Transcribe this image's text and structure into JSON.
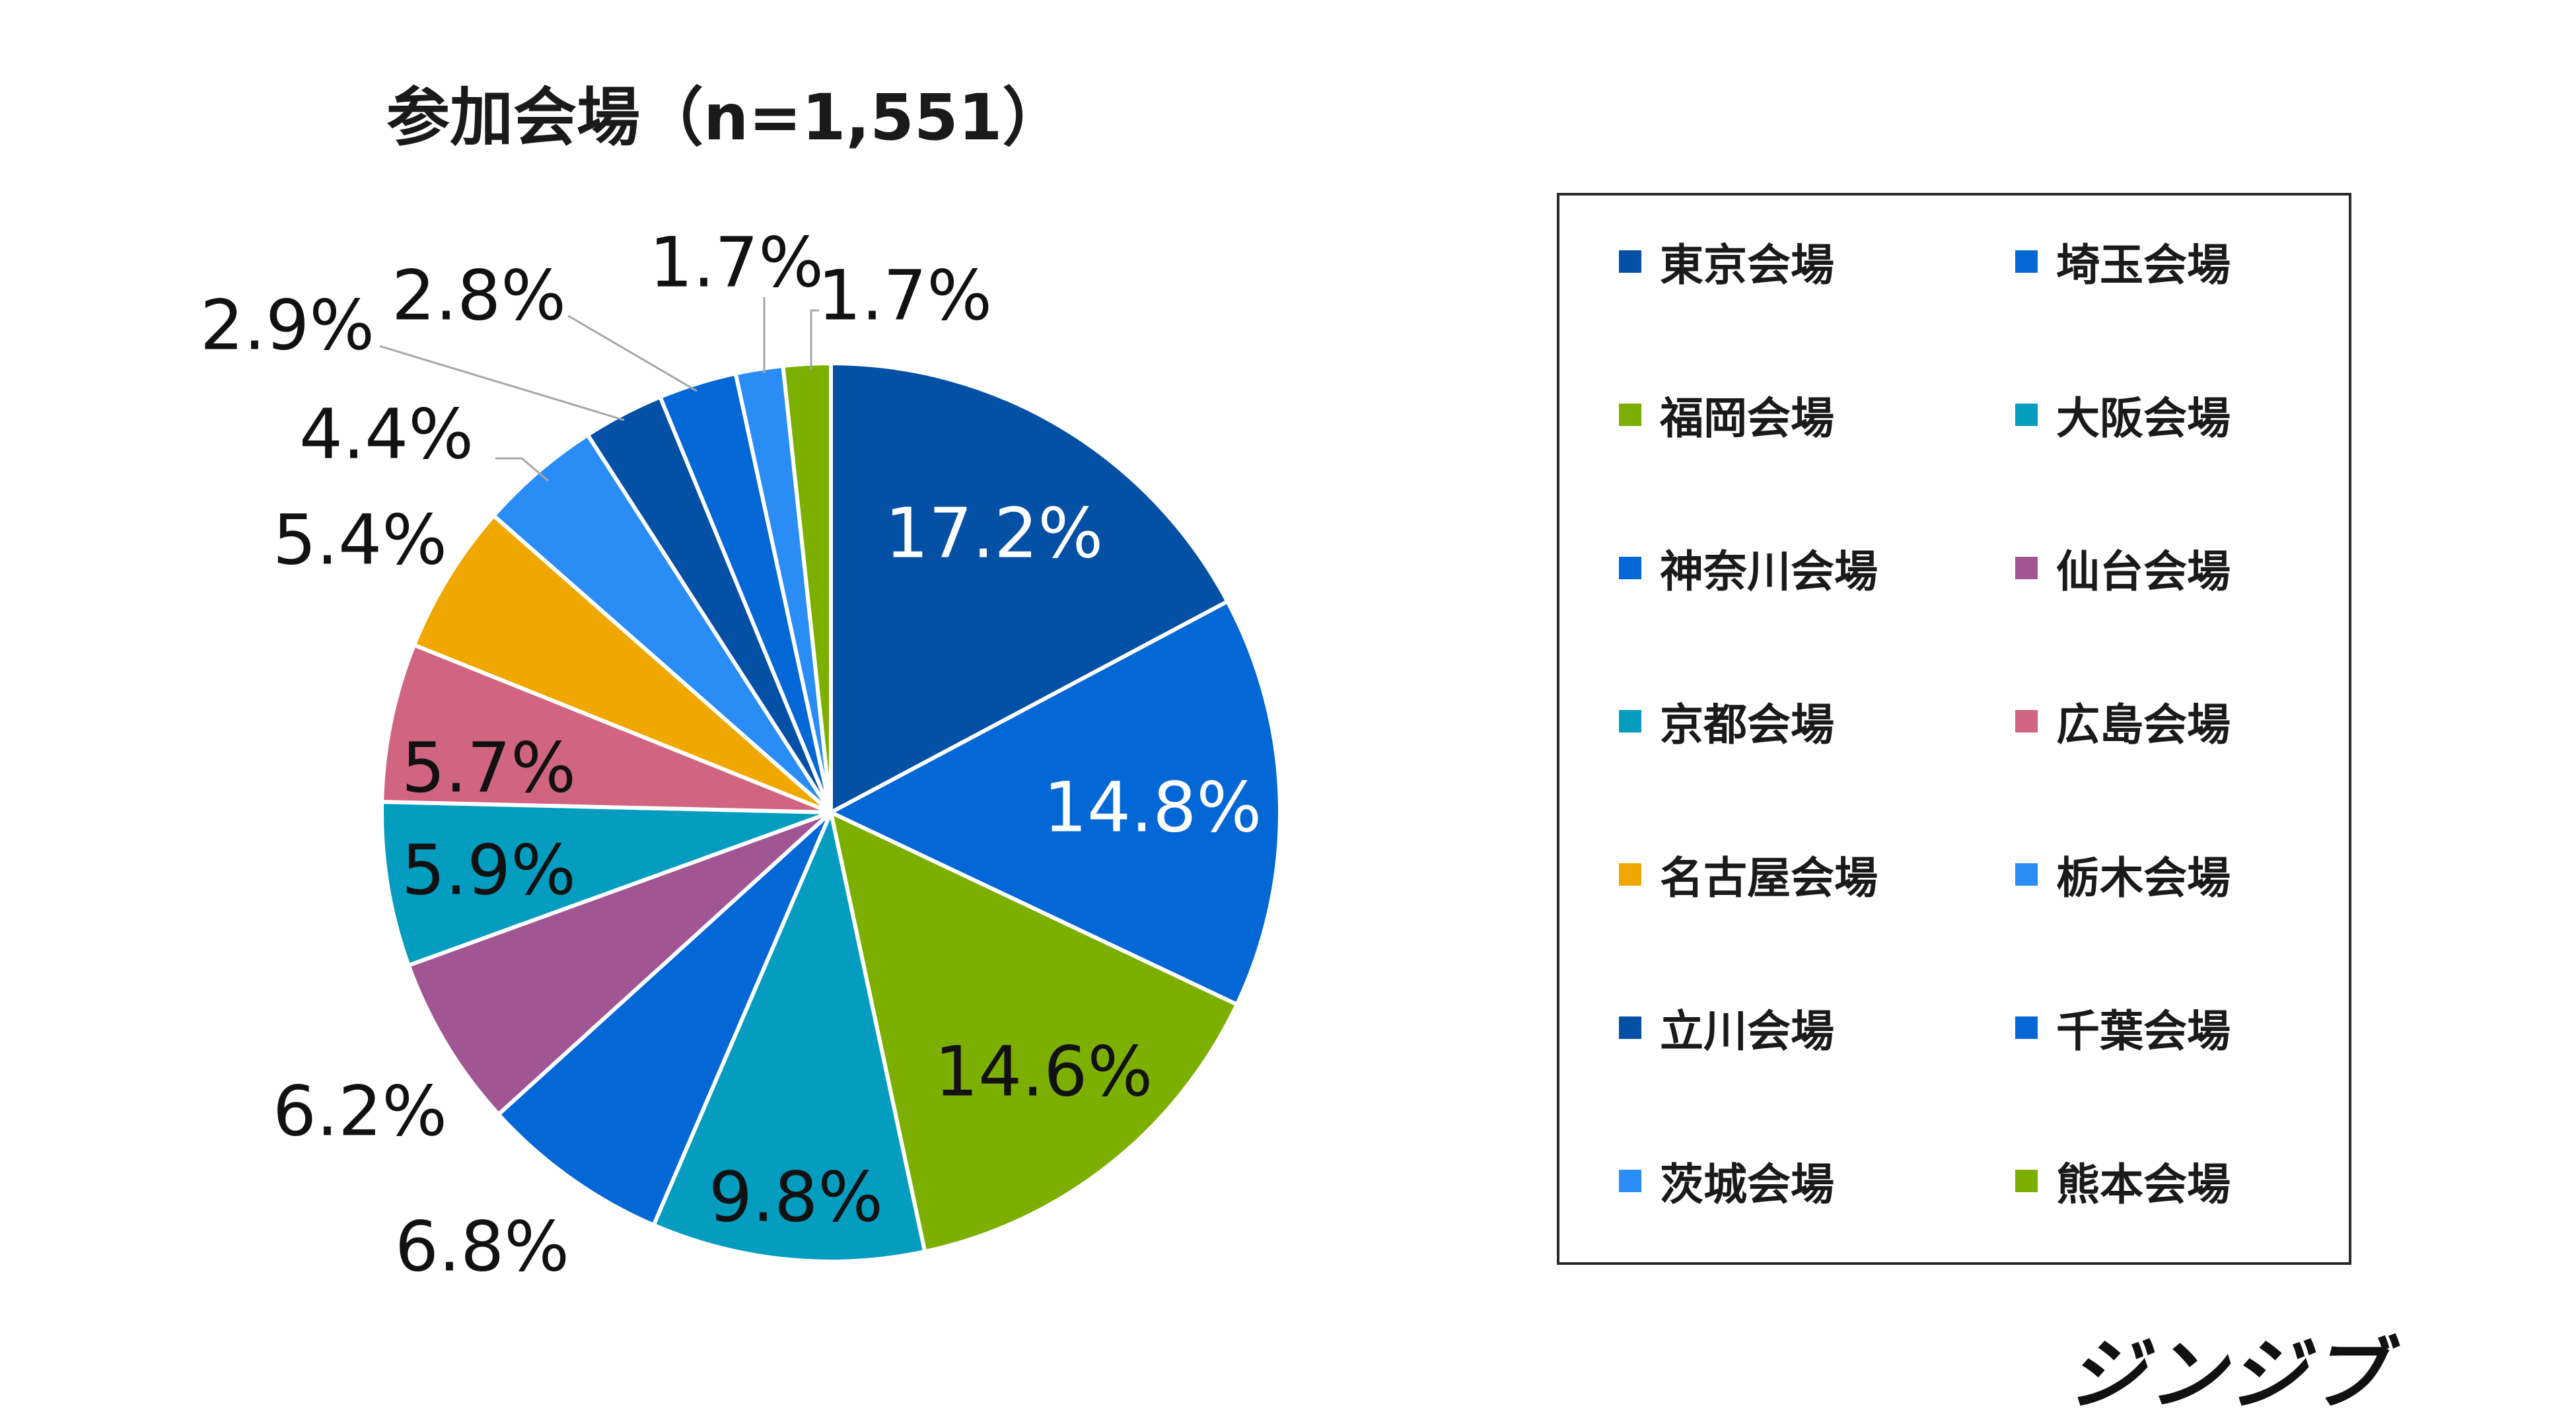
{
  "chart_data": {
    "type": "pie",
    "title": "参加会場（n=1,551）",
    "slices": [
      {
        "label": "東京会場",
        "value": 17.2,
        "value_label": "17.2%",
        "color": "#0450A4"
      },
      {
        "label": "埼玉会場",
        "value": 14.8,
        "value_label": "14.8%",
        "color": "#0467D6"
      },
      {
        "label": "福岡会場",
        "value": 14.6,
        "value_label": "14.6%",
        "color": "#7DAF01"
      },
      {
        "label": "大阪会場",
        "value": 9.8,
        "value_label": "9.8%",
        "color": "#049DBF"
      },
      {
        "label": "神奈川会場",
        "value": 6.8,
        "value_label": "6.8%",
        "color": "#0467D6"
      },
      {
        "label": "仙台会場",
        "value": 6.2,
        "value_label": "6.2%",
        "color": "#A25593"
      },
      {
        "label": "京都会場",
        "value": 5.9,
        "value_label": "5.9%",
        "color": "#049DBF"
      },
      {
        "label": "広島会場",
        "value": 5.7,
        "value_label": "5.7%",
        "color": "#D06481"
      },
      {
        "label": "名古屋会場",
        "value": 5.4,
        "value_label": "5.4%",
        "color": "#F0A800"
      },
      {
        "label": "栃木会場",
        "value": 4.4,
        "value_label": "4.4%",
        "color": "#2A8DF5"
      },
      {
        "label": "立川会場",
        "value": 2.9,
        "value_label": "2.9%",
        "color": "#0450A4"
      },
      {
        "label": "千葉会場",
        "value": 2.8,
        "value_label": "2.8%",
        "color": "#0467D6"
      },
      {
        "label": "茨城会場",
        "value": 1.7,
        "value_label": "1.7%",
        "color": "#2A8DF5"
      },
      {
        "label": "熊本会場",
        "value": 1.7,
        "value_label": "1.7%",
        "color": "#7DAF01"
      }
    ],
    "legend_position": "right"
  },
  "logo_text": "ジンジブ"
}
